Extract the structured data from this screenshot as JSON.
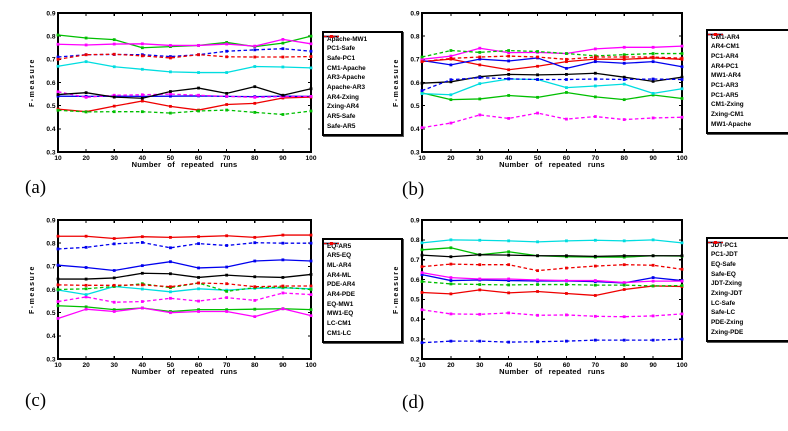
{
  "figure": {
    "background": "#ffffff"
  },
  "chart_data": [
    {
      "id": "a",
      "caption": "(a)",
      "type": "line",
      "title": "",
      "xlabel": "Number of repeated runs",
      "ylabel": "F-measure",
      "x": [
        10,
        20,
        30,
        40,
        50,
        60,
        70,
        80,
        90,
        100
      ],
      "xlim": [
        10,
        100
      ],
      "ylim": [
        0.3,
        0.9
      ],
      "yticks": [
        0.3,
        0.4,
        0.5,
        0.6,
        0.7,
        0.8,
        0.9
      ],
      "grid": false,
      "legend_position": "outside-right",
      "series": [
        {
          "name": "Apache-MW1",
          "color": "#0000ee",
          "style": "solid",
          "marker": "square",
          "values": [
            0.541,
            0.54,
            0.541,
            0.54,
            0.541,
            0.542,
            0.54,
            0.539,
            0.541,
            0.54
          ]
        },
        {
          "name": "PC1-Safe",
          "color": "#00bf00",
          "style": "solid",
          "marker": "square",
          "values": [
            0.805,
            0.792,
            0.785,
            0.75,
            0.755,
            0.76,
            0.773,
            0.755,
            0.77,
            0.8
          ]
        },
        {
          "name": "Safe-PC1",
          "color": "#ee0000",
          "style": "solid",
          "marker": "square",
          "values": [
            0.485,
            0.474,
            0.498,
            0.52,
            0.497,
            0.481,
            0.505,
            0.51,
            0.533,
            0.537
          ]
        },
        {
          "name": "CM1-Apache",
          "color": "#00dde0",
          "style": "solid",
          "marker": "square",
          "values": [
            0.67,
            0.69,
            0.668,
            0.657,
            0.646,
            0.643,
            0.643,
            0.669,
            0.667,
            0.663
          ]
        },
        {
          "name": "AR3-Apache",
          "color": "#ff00ff",
          "style": "dashed",
          "marker": "square",
          "values": [
            0.56,
            0.536,
            0.545,
            0.547,
            0.55,
            0.545,
            0.54,
            0.536,
            0.539,
            0.54
          ]
        },
        {
          "name": "Apache-AR3",
          "color": "#ff00ff",
          "style": "solid",
          "marker": "square",
          "values": [
            0.765,
            0.762,
            0.766,
            0.767,
            0.76,
            0.76,
            0.766,
            0.757,
            0.786,
            0.767
          ]
        },
        {
          "name": "AR4-Zxing",
          "color": "#000000",
          "style": "solid",
          "marker": "square",
          "values": [
            0.548,
            0.556,
            0.537,
            0.532,
            0.561,
            0.576,
            0.553,
            0.582,
            0.545,
            0.573
          ]
        },
        {
          "name": "Zxing-AR4",
          "color": "#0000ee",
          "style": "dashed",
          "marker": "square",
          "values": [
            0.71,
            0.72,
            0.721,
            0.72,
            0.712,
            0.72,
            0.735,
            0.741,
            0.746,
            0.735
          ]
        },
        {
          "name": "AR5-Safe",
          "color": "#00bf00",
          "style": "dashed",
          "marker": "square",
          "values": [
            0.48,
            0.473,
            0.474,
            0.474,
            0.468,
            0.477,
            0.481,
            0.471,
            0.462,
            0.477
          ]
        },
        {
          "name": "Safe-AR5",
          "color": "#ee0000",
          "style": "dashed",
          "marker": "square",
          "values": [
            0.7,
            0.72,
            0.722,
            0.715,
            0.706,
            0.72,
            0.711,
            0.71,
            0.71,
            0.712
          ]
        }
      ]
    },
    {
      "id": "b",
      "caption": "(b)",
      "type": "line",
      "title": "",
      "xlabel": "Number of repeated runs",
      "ylabel": "F-measure",
      "x": [
        10,
        20,
        30,
        40,
        50,
        60,
        70,
        80,
        90,
        100
      ],
      "xlim": [
        10,
        100
      ],
      "ylim": [
        0.3,
        0.9
      ],
      "yticks": [
        0.3,
        0.4,
        0.5,
        0.6,
        0.7,
        0.8,
        0.9
      ],
      "grid": false,
      "legend_position": "outside-right",
      "series": [
        {
          "name": "CM1-AR4",
          "color": "#ee0000",
          "style": "solid",
          "marker": "square",
          "values": [
            0.69,
            0.701,
            0.676,
            0.655,
            0.67,
            0.69,
            0.701,
            0.7,
            0.706,
            0.7
          ]
        },
        {
          "name": "AR4-CM1",
          "color": "#00bf00",
          "style": "solid",
          "marker": "square",
          "values": [
            0.555,
            0.526,
            0.529,
            0.544,
            0.536,
            0.557,
            0.538,
            0.526,
            0.546,
            0.531
          ]
        },
        {
          "name": "PC1-AR4",
          "color": "#0000ee",
          "style": "solid",
          "marker": "square",
          "values": [
            0.695,
            0.676,
            0.701,
            0.693,
            0.706,
            0.661,
            0.69,
            0.683,
            0.69,
            0.668
          ]
        },
        {
          "name": "AR4-PC1",
          "color": "#00dde0",
          "style": "solid",
          "marker": "square",
          "values": [
            0.552,
            0.547,
            0.595,
            0.615,
            0.613,
            0.578,
            0.585,
            0.593,
            0.553,
            0.573
          ]
        },
        {
          "name": "MW1-AR4",
          "color": "#ff00ff",
          "style": "dashed",
          "marker": "square",
          "values": [
            0.405,
            0.425,
            0.46,
            0.445,
            0.468,
            0.442,
            0.453,
            0.44,
            0.447,
            0.45
          ]
        },
        {
          "name": "PC1-AR3",
          "color": "#ff00ff",
          "style": "solid",
          "marker": "square",
          "values": [
            0.7,
            0.714,
            0.748,
            0.729,
            0.73,
            0.725,
            0.745,
            0.752,
            0.752,
            0.757
          ]
        },
        {
          "name": "PC1-AR5",
          "color": "#000000",
          "style": "solid",
          "marker": "square",
          "values": [
            0.597,
            0.603,
            0.625,
            0.635,
            0.633,
            0.635,
            0.64,
            0.623,
            0.605,
            0.623
          ]
        },
        {
          "name": "CM1-Zxing",
          "color": "#0000ee",
          "style": "dashed",
          "marker": "square",
          "values": [
            0.565,
            0.612,
            0.621,
            0.616,
            0.613,
            0.613,
            0.615,
            0.613,
            0.615,
            0.613
          ]
        },
        {
          "name": "Zxing-CM1",
          "color": "#00bf00",
          "style": "dashed",
          "marker": "square",
          "values": [
            0.71,
            0.738,
            0.73,
            0.738,
            0.734,
            0.725,
            0.715,
            0.72,
            0.725,
            0.725
          ]
        },
        {
          "name": "MW1-Apache",
          "color": "#ee0000",
          "style": "dashed",
          "marker": "square",
          "values": [
            0.69,
            0.704,
            0.71,
            0.714,
            0.71,
            0.7,
            0.71,
            0.71,
            0.71,
            0.705
          ]
        }
      ]
    },
    {
      "id": "c",
      "caption": "(c)",
      "type": "line",
      "title": "",
      "xlabel": "Number of repeated runs",
      "ylabel": "F-measure",
      "x": [
        10,
        20,
        30,
        40,
        50,
        60,
        70,
        80,
        90,
        100
      ],
      "xlim": [
        10,
        100
      ],
      "ylim": [
        0.3,
        0.9
      ],
      "yticks": [
        0.3,
        0.4,
        0.5,
        0.6,
        0.7,
        0.8,
        0.9
      ],
      "grid": false,
      "legend_position": "outside-right",
      "series": [
        {
          "name": "EQ-AR5",
          "color": "#ee0000",
          "style": "solid",
          "marker": "square",
          "values": [
            0.83,
            0.83,
            0.82,
            0.828,
            0.825,
            0.828,
            0.832,
            0.825,
            0.835,
            0.835
          ]
        },
        {
          "name": "AR5-EQ",
          "color": "#00bf00",
          "style": "solid",
          "marker": "square",
          "values": [
            0.53,
            0.525,
            0.513,
            0.52,
            0.505,
            0.513,
            0.513,
            0.515,
            0.517,
            0.513
          ]
        },
        {
          "name": "ML-AR4",
          "color": "#0000ee",
          "style": "solid",
          "marker": "square",
          "values": [
            0.705,
            0.695,
            0.682,
            0.703,
            0.72,
            0.693,
            0.697,
            0.723,
            0.728,
            0.723
          ]
        },
        {
          "name": "AR4-ML",
          "color": "#ff00ff",
          "style": "solid",
          "marker": "square",
          "values": [
            0.475,
            0.515,
            0.505,
            0.52,
            0.5,
            0.505,
            0.505,
            0.483,
            0.517,
            0.487
          ]
        },
        {
          "name": "PDE-AR4",
          "color": "#ff00ff",
          "style": "dashed",
          "marker": "square",
          "values": [
            0.548,
            0.568,
            0.545,
            0.548,
            0.562,
            0.55,
            0.565,
            0.553,
            0.585,
            0.578
          ]
        },
        {
          "name": "AR4-PDE",
          "color": "#00dde0",
          "style": "solid",
          "marker": "square",
          "values": [
            0.598,
            0.578,
            0.613,
            0.602,
            0.59,
            0.603,
            0.597,
            0.605,
            0.607,
            0.603
          ]
        },
        {
          "name": "EQ-MW1",
          "color": "#000000",
          "style": "solid",
          "marker": "square",
          "values": [
            0.645,
            0.645,
            0.65,
            0.67,
            0.668,
            0.652,
            0.662,
            0.655,
            0.652,
            0.665
          ]
        },
        {
          "name": "MW1-EQ",
          "color": "#0000ee",
          "style": "dashed",
          "marker": "square",
          "values": [
            0.775,
            0.782,
            0.797,
            0.803,
            0.78,
            0.798,
            0.79,
            0.802,
            0.8,
            0.8
          ]
        },
        {
          "name": "LC-CM1",
          "color": "#00bf00",
          "style": "dashed",
          "marker": "square",
          "values": [
            0.6,
            0.603,
            0.613,
            0.625,
            0.608,
            0.628,
            0.592,
            0.608,
            0.61,
            0.6
          ]
        },
        {
          "name": "CM1-LC",
          "color": "#ee0000",
          "style": "dashed",
          "marker": "square",
          "values": [
            0.62,
            0.618,
            0.618,
            0.62,
            0.612,
            0.628,
            0.625,
            0.612,
            0.615,
            0.615
          ]
        }
      ]
    },
    {
      "id": "d",
      "caption": "(d)",
      "type": "line",
      "title": "",
      "xlabel": "Number of repeated runs",
      "ylabel": "F-measure",
      "x": [
        10,
        20,
        30,
        40,
        50,
        60,
        70,
        80,
        90,
        100
      ],
      "xlim": [
        10,
        100
      ],
      "ylim": [
        0.2,
        0.9
      ],
      "yticks": [
        0.2,
        0.3,
        0.4,
        0.5,
        0.6,
        0.7,
        0.8,
        0.9
      ],
      "grid": false,
      "legend_position": "outside-right",
      "series": [
        {
          "name": "JDT-PC1",
          "color": "#ee0000",
          "style": "solid",
          "marker": "square",
          "values": [
            0.535,
            0.528,
            0.548,
            0.533,
            0.54,
            0.53,
            0.52,
            0.55,
            0.568,
            0.565
          ]
        },
        {
          "name": "PC1-JDT",
          "color": "#00bf00",
          "style": "solid",
          "marker": "square",
          "values": [
            0.75,
            0.76,
            0.725,
            0.74,
            0.72,
            0.715,
            0.713,
            0.713,
            0.72,
            0.718
          ]
        },
        {
          "name": "EQ-Safe",
          "color": "#0000ee",
          "style": "solid",
          "marker": "square",
          "values": [
            0.625,
            0.595,
            0.598,
            0.595,
            0.593,
            0.593,
            0.59,
            0.583,
            0.61,
            0.595
          ]
        },
        {
          "name": "Safe-EQ",
          "color": "#ff00ff",
          "style": "solid",
          "marker": "square",
          "values": [
            0.635,
            0.61,
            0.603,
            0.603,
            0.598,
            0.595,
            0.595,
            0.585,
            0.592,
            0.592
          ]
        },
        {
          "name": "JDT-Zxing",
          "color": "#ff00ff",
          "style": "dashed",
          "marker": "square",
          "values": [
            0.448,
            0.427,
            0.425,
            0.432,
            0.42,
            0.422,
            0.415,
            0.413,
            0.417,
            0.427
          ]
        },
        {
          "name": "Zxing-JDT",
          "color": "#00dde0",
          "style": "solid",
          "marker": "square",
          "values": [
            0.785,
            0.8,
            0.798,
            0.795,
            0.79,
            0.795,
            0.798,
            0.795,
            0.8,
            0.785
          ]
        },
        {
          "name": "LC-Safe",
          "color": "#000000",
          "style": "solid",
          "marker": "square",
          "values": [
            0.723,
            0.715,
            0.725,
            0.723,
            0.72,
            0.72,
            0.717,
            0.72,
            0.72,
            0.72
          ]
        },
        {
          "name": "Safe-LC",
          "color": "#0000ee",
          "style": "dashed",
          "marker": "square",
          "values": [
            0.282,
            0.29,
            0.29,
            0.285,
            0.287,
            0.29,
            0.295,
            0.295,
            0.295,
            0.3
          ]
        },
        {
          "name": "PDE-Zxing",
          "color": "#00bf00",
          "style": "dashed",
          "marker": "square",
          "values": [
            0.59,
            0.578,
            0.575,
            0.573,
            0.575,
            0.575,
            0.572,
            0.572,
            0.568,
            0.57
          ]
        },
        {
          "name": "Zxing-PDE",
          "color": "#ee0000",
          "style": "dashed",
          "marker": "square",
          "values": [
            0.665,
            0.678,
            0.675,
            0.675,
            0.645,
            0.658,
            0.668,
            0.675,
            0.672,
            0.652
          ]
        }
      ]
    }
  ]
}
